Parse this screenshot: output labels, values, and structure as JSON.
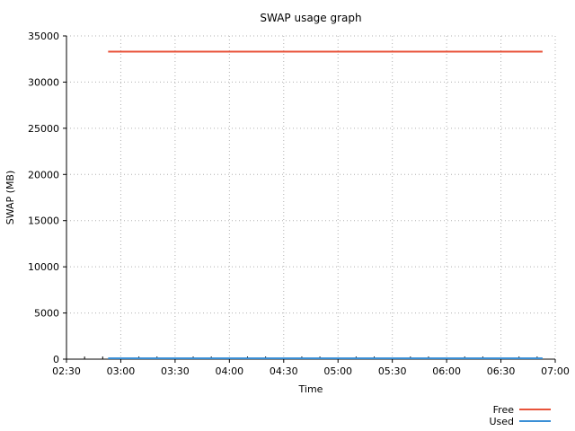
{
  "chart_data": {
    "type": "line",
    "title": "SWAP usage graph",
    "xlabel": "Time",
    "ylabel": "SWAP (MB)",
    "xlim": [
      "02:30",
      "07:00"
    ],
    "ylim": [
      0,
      35000
    ],
    "x_ticks": [
      "02:30",
      "03:00",
      "03:30",
      "04:00",
      "04:30",
      "05:00",
      "05:30",
      "06:00",
      "06:30",
      "07:00"
    ],
    "y_ticks": [
      0,
      5000,
      10000,
      15000,
      20000,
      25000,
      30000,
      35000
    ],
    "grid": true,
    "legend_position": "bottom-right",
    "series": [
      {
        "name": "Free",
        "color": "#e8533a",
        "x": [
          "02:53",
          "06:53"
        ],
        "values": [
          33300,
          33300
        ]
      },
      {
        "name": "Used",
        "color": "#3a8fd6",
        "x": [
          "02:53",
          "06:53"
        ],
        "values": [
          0,
          0
        ]
      }
    ]
  }
}
